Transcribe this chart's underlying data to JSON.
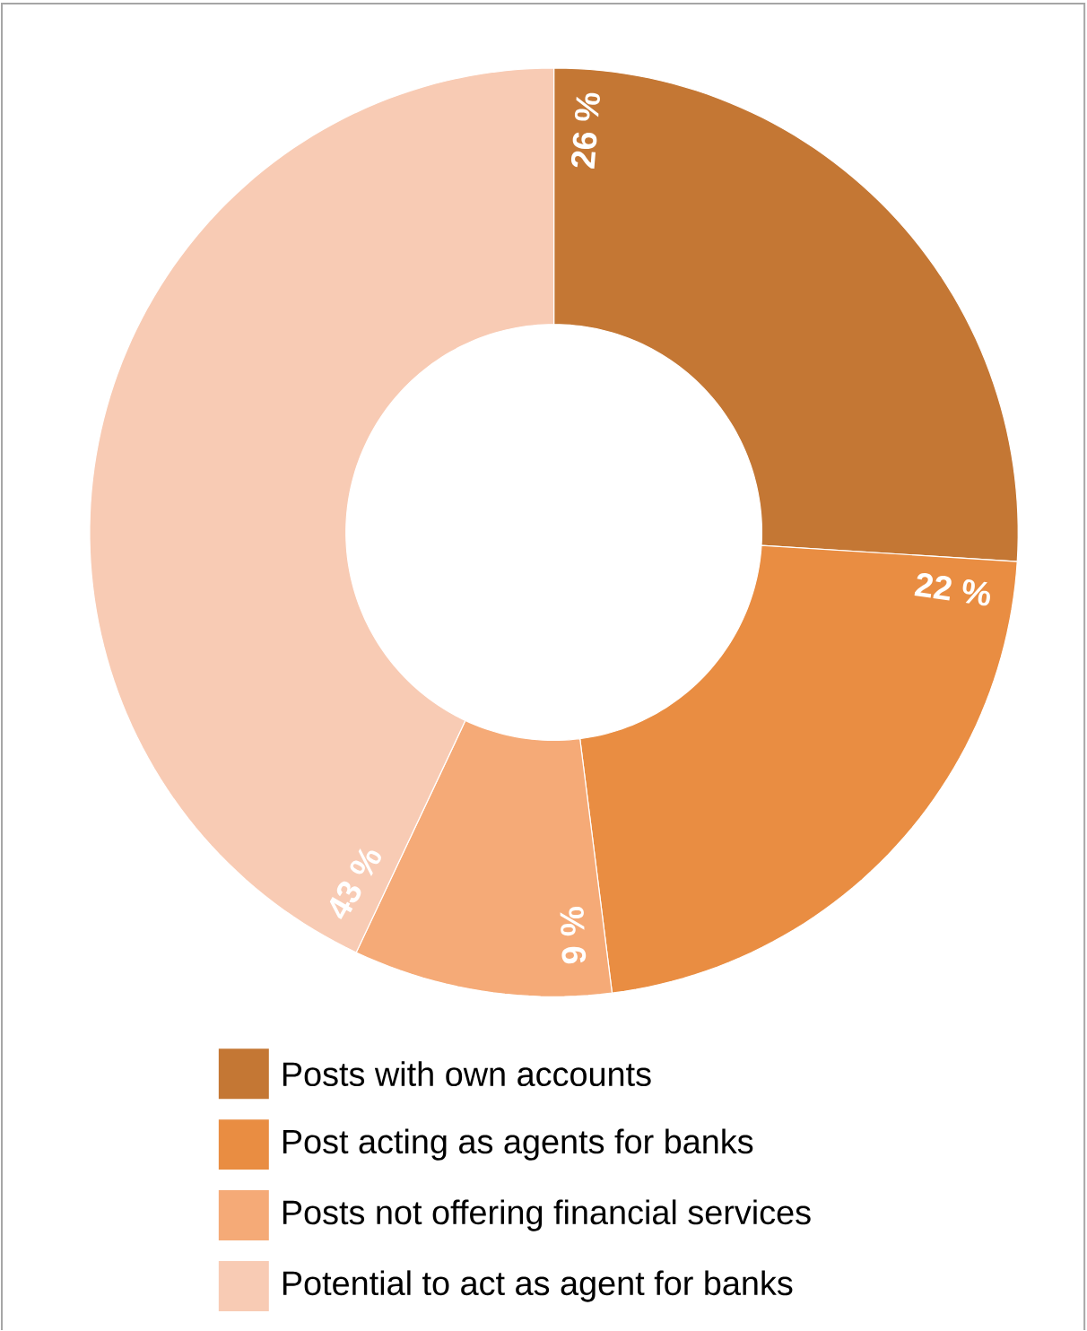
{
  "chart_data": {
    "type": "donut",
    "categories": [
      "Posts with own accounts",
      "Post acting as agents for banks",
      "Posts not offering financial services",
      "Potential to act as agent for banks"
    ],
    "values": [
      26,
      22,
      9,
      43
    ],
    "value_labels": [
      "26 %",
      "22 %",
      "9 %",
      "43 %"
    ],
    "colors": [
      "#c47734",
      "#e98d42",
      "#f5aa77",
      "#f8cbb4"
    ],
    "legend": "bottom"
  }
}
